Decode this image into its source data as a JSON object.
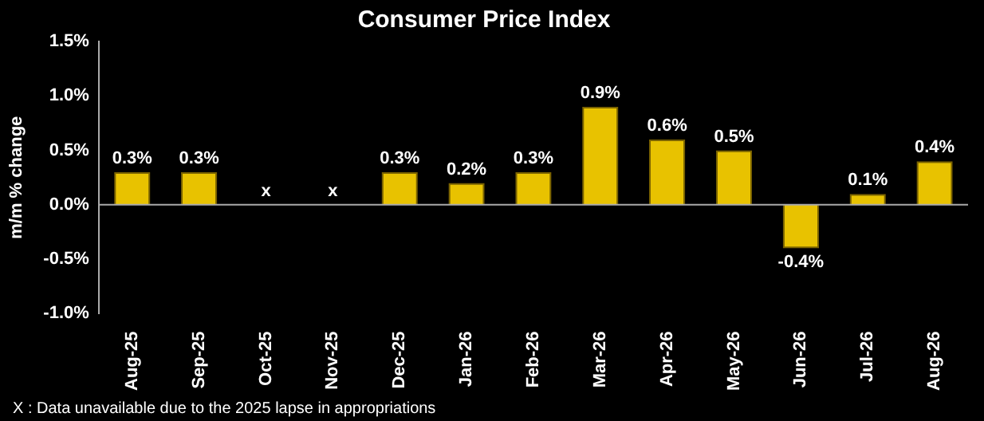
{
  "chart_data": {
    "type": "bar",
    "title": "Consumer Price Index",
    "ylabel": "m/m % change",
    "categories": [
      "Aug-25",
      "Sep-25",
      "Oct-25",
      "Nov-25",
      "Dec-25",
      "Jan-26",
      "Feb-26",
      "Mar-26",
      "Apr-26",
      "May-26",
      "Jun-26",
      "Jul-26",
      "Aug-26"
    ],
    "values": [
      0.3,
      0.3,
      null,
      null,
      0.3,
      0.2,
      0.3,
      0.9,
      0.6,
      0.5,
      -0.4,
      0.1,
      0.4
    ],
    "value_labels": [
      "0.3%",
      "0.3%",
      "x",
      "x",
      "0.3%",
      "0.2%",
      "0.3%",
      "0.9%",
      "0.6%",
      "0.5%",
      "-0.4%",
      "0.1%",
      "0.4%"
    ],
    "color": "#e8c200",
    "ylim": [
      -1,
      1.5
    ],
    "yticks": [
      {
        "value": -1,
        "label": "-1.0%"
      },
      {
        "value": -0.5,
        "label": "-0.5%"
      },
      {
        "value": 0,
        "label": "0.0%"
      },
      {
        "value": 0.5,
        "label": "0.5%"
      },
      {
        "value": 1,
        "label": "1.0%"
      },
      {
        "value": 1.5,
        "label": "1.5%"
      }
    ],
    "grid": false,
    "ref_lines": [
      {
        "axis": "y",
        "value": 0,
        "color": "#aaaaaa"
      }
    ],
    "annotations": [
      "X : Data unavailable due to the 2025 lapse in appropriations"
    ]
  }
}
